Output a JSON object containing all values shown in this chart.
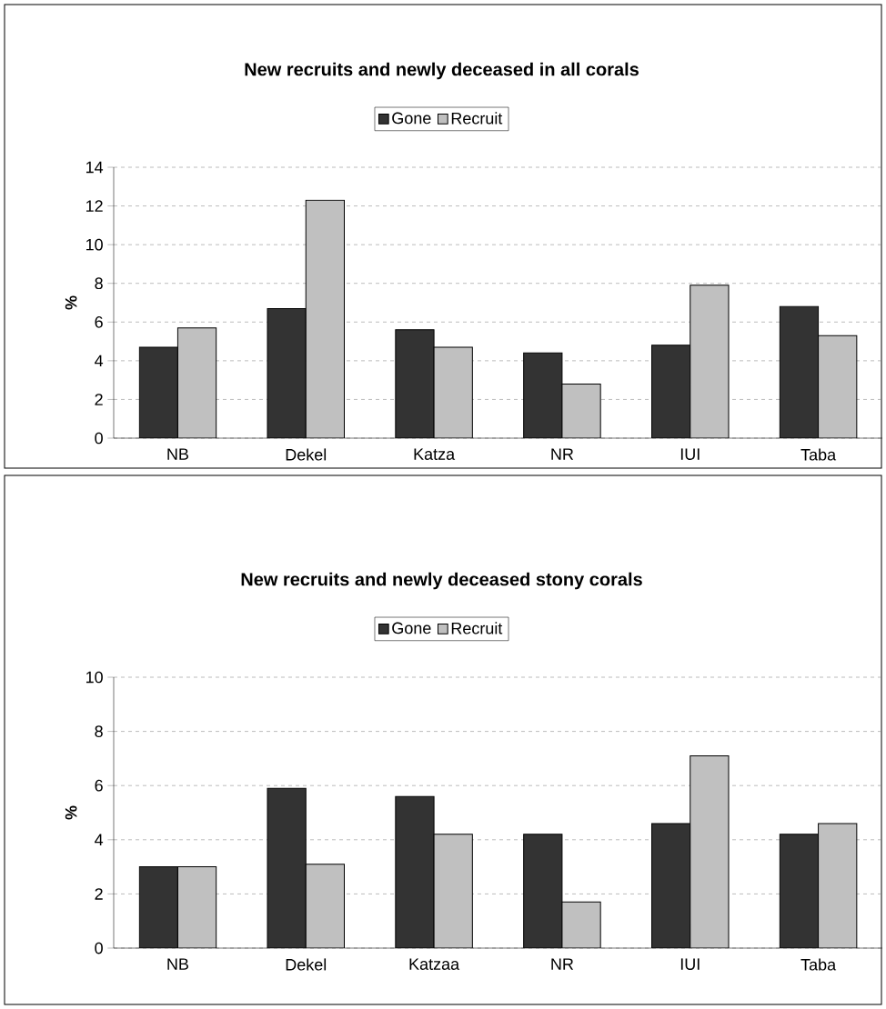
{
  "chart_data": [
    {
      "type": "bar",
      "title": "New recruits and newly deceased in all corals",
      "ylabel": "%",
      "categories": [
        "NB",
        "Dekel",
        "Katza",
        "NR",
        "IUI",
        "Taba"
      ],
      "series": [
        {
          "name": "Gone",
          "color": "#333333",
          "values": [
            4.7,
            6.7,
            5.6,
            4.4,
            4.8,
            6.8
          ]
        },
        {
          "name": "Recruit",
          "color": "#c0c0c0",
          "values": [
            5.7,
            12.3,
            4.7,
            2.8,
            7.9,
            5.3
          ]
        }
      ],
      "ylim": [
        0,
        14
      ],
      "yticks": [
        0,
        2,
        4,
        6,
        8,
        10,
        12,
        14
      ],
      "grid": "y",
      "legend": "top"
    },
    {
      "type": "bar",
      "title": "New recruits and newly deceased stony corals",
      "ylabel": "%",
      "categories": [
        "NB",
        "Dekel",
        "Katzaa",
        "NR",
        "IUI",
        "Taba"
      ],
      "series": [
        {
          "name": "Gone",
          "color": "#333333",
          "values": [
            3.0,
            5.9,
            5.6,
            4.2,
            4.6,
            4.2
          ]
        },
        {
          "name": "Recruit",
          "color": "#c0c0c0",
          "values": [
            3.0,
            3.1,
            4.2,
            1.7,
            7.1,
            4.6
          ]
        }
      ],
      "ylim": [
        0,
        10
      ],
      "yticks": [
        0,
        2,
        4,
        6,
        8,
        10
      ],
      "grid": "y",
      "legend": "top"
    }
  ]
}
